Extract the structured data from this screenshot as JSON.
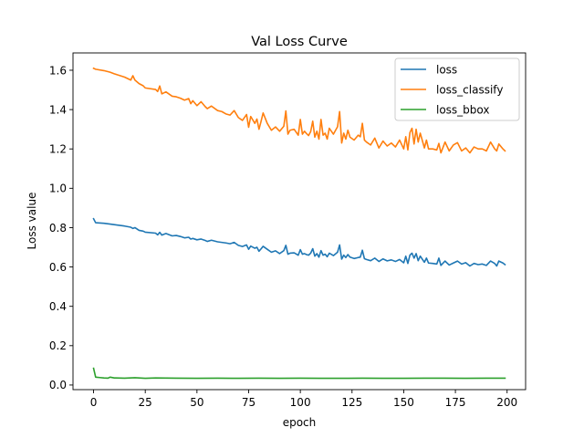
{
  "chart_data": {
    "type": "line",
    "title": "Val Loss Curve",
    "xlabel": "epoch",
    "ylabel": "Loss value",
    "xlim": [
      -9.95,
      208.95
    ],
    "ylim": [
      -0.0235,
      1.688
    ],
    "xticks": [
      0,
      25,
      50,
      75,
      100,
      125,
      150,
      175,
      200
    ],
    "yticks": [
      0.0,
      0.2,
      0.4,
      0.6,
      0.8,
      1.0,
      1.2,
      1.4,
      1.6
    ],
    "grid": false,
    "legend_position": "top-right",
    "series": [
      {
        "name": "loss",
        "color": "#1f77b4",
        "x": [
          0,
          1,
          5,
          8,
          10,
          15,
          18,
          19,
          20,
          22,
          24,
          25,
          30,
          31,
          32,
          33,
          35,
          38,
          40,
          42,
          44,
          46,
          47,
          48,
          50,
          52,
          54,
          55,
          57,
          60,
          62,
          64,
          66,
          68,
          70,
          72,
          74,
          75,
          76,
          78,
          79,
          80,
          81,
          82,
          84,
          86,
          88,
          90,
          92,
          93,
          94,
          95,
          97,
          99,
          100,
          101,
          102,
          103,
          104,
          105,
          106,
          107,
          108,
          109,
          110,
          111,
          112,
          113,
          114,
          116,
          118,
          119,
          120,
          121,
          122,
          123,
          124,
          126,
          128,
          129,
          130,
          131,
          132,
          134,
          136,
          138,
          140,
          142,
          144,
          146,
          148,
          150,
          151,
          152,
          153,
          154,
          155,
          156,
          157,
          158,
          160,
          161,
          162,
          164,
          166,
          167,
          168,
          170,
          172,
          174,
          176,
          178,
          180,
          182,
          184,
          186,
          188,
          190,
          192,
          194,
          195,
          196,
          198,
          199
        ],
        "y": [
          0.845,
          0.825,
          0.822,
          0.818,
          0.815,
          0.808,
          0.802,
          0.796,
          0.8,
          0.786,
          0.782,
          0.777,
          0.772,
          0.763,
          0.776,
          0.762,
          0.77,
          0.758,
          0.76,
          0.755,
          0.748,
          0.751,
          0.742,
          0.745,
          0.738,
          0.742,
          0.735,
          0.73,
          0.736,
          0.728,
          0.725,
          0.722,
          0.718,
          0.725,
          0.71,
          0.704,
          0.712,
          0.69,
          0.706,
          0.695,
          0.7,
          0.68,
          0.692,
          0.705,
          0.69,
          0.675,
          0.682,
          0.668,
          0.683,
          0.71,
          0.665,
          0.67,
          0.672,
          0.66,
          0.688,
          0.665,
          0.668,
          0.663,
          0.66,
          0.67,
          0.693,
          0.655,
          0.668,
          0.65,
          0.683,
          0.66,
          0.665,
          0.652,
          0.67,
          0.658,
          0.675,
          0.712,
          0.64,
          0.66,
          0.648,
          0.663,
          0.65,
          0.643,
          0.648,
          0.65,
          0.685,
          0.642,
          0.638,
          0.632,
          0.645,
          0.628,
          0.641,
          0.631,
          0.636,
          0.628,
          0.638,
          0.621,
          0.655,
          0.618,
          0.66,
          0.67,
          0.645,
          0.668,
          0.632,
          0.655,
          0.624,
          0.645,
          0.62,
          0.618,
          0.615,
          0.645,
          0.608,
          0.63,
          0.61,
          0.62,
          0.63,
          0.615,
          0.622,
          0.605,
          0.618,
          0.612,
          0.615,
          0.608,
          0.63,
          0.618,
          0.605,
          0.63,
          0.62,
          0.612
        ]
      },
      {
        "name": "loss_classify",
        "color": "#ff7f0e",
        "x": [
          0,
          1,
          5,
          8,
          10,
          15,
          18,
          19,
          20,
          22,
          24,
          25,
          30,
          31,
          32,
          33,
          35,
          38,
          40,
          42,
          44,
          46,
          47,
          48,
          50,
          52,
          54,
          55,
          57,
          60,
          62,
          64,
          66,
          68,
          70,
          72,
          74,
          75,
          76,
          78,
          79,
          80,
          81,
          82,
          84,
          86,
          88,
          90,
          92,
          93,
          94,
          95,
          97,
          99,
          100,
          101,
          102,
          103,
          104,
          105,
          106,
          107,
          108,
          109,
          110,
          111,
          112,
          113,
          114,
          116,
          118,
          119,
          120,
          121,
          122,
          123,
          124,
          126,
          128,
          129,
          130,
          131,
          132,
          134,
          136,
          138,
          140,
          142,
          144,
          146,
          148,
          150,
          151,
          152,
          153,
          154,
          155,
          156,
          157,
          158,
          160,
          161,
          162,
          164,
          166,
          167,
          168,
          170,
          172,
          174,
          176,
          178,
          180,
          182,
          184,
          186,
          188,
          190,
          192,
          194,
          195,
          196,
          198,
          199
        ],
        "y": [
          1.61,
          1.605,
          1.598,
          1.59,
          1.582,
          1.565,
          1.55,
          1.572,
          1.55,
          1.532,
          1.521,
          1.51,
          1.502,
          1.492,
          1.52,
          1.48,
          1.49,
          1.468,
          1.465,
          1.458,
          1.448,
          1.456,
          1.43,
          1.445,
          1.42,
          1.44,
          1.415,
          1.405,
          1.418,
          1.395,
          1.39,
          1.378,
          1.372,
          1.395,
          1.36,
          1.345,
          1.375,
          1.31,
          1.365,
          1.33,
          1.352,
          1.3,
          1.34,
          1.383,
          1.33,
          1.295,
          1.312,
          1.29,
          1.315,
          1.393,
          1.275,
          1.295,
          1.3,
          1.27,
          1.35,
          1.275,
          1.29,
          1.278,
          1.268,
          1.288,
          1.341,
          1.26,
          1.29,
          1.25,
          1.35,
          1.27,
          1.28,
          1.25,
          1.305,
          1.275,
          1.313,
          1.39,
          1.23,
          1.28,
          1.25,
          1.295,
          1.26,
          1.245,
          1.27,
          1.262,
          1.33,
          1.245,
          1.235,
          1.22,
          1.255,
          1.205,
          1.24,
          1.215,
          1.23,
          1.21,
          1.245,
          1.2,
          1.262,
          1.195,
          1.283,
          1.305,
          1.225,
          1.3,
          1.235,
          1.28,
          1.205,
          1.245,
          1.2,
          1.2,
          1.195,
          1.228,
          1.18,
          1.235,
          1.19,
          1.22,
          1.232,
          1.19,
          1.205,
          1.18,
          1.21,
          1.2,
          1.2,
          1.19,
          1.235,
          1.2,
          1.19,
          1.225,
          1.2,
          1.19
        ]
      },
      {
        "name": "loss_bbox",
        "color": "#2ca02c",
        "x": [
          0,
          1,
          3,
          5,
          7,
          8,
          10,
          15,
          20,
          25,
          30,
          40,
          50,
          60,
          70,
          80,
          90,
          100,
          110,
          120,
          130,
          140,
          150,
          160,
          170,
          180,
          190,
          199
        ],
        "y": [
          0.085,
          0.04,
          0.038,
          0.036,
          0.035,
          0.04,
          0.036,
          0.035,
          0.037,
          0.034,
          0.036,
          0.035,
          0.034,
          0.035,
          0.034,
          0.035,
          0.034,
          0.035,
          0.034,
          0.034,
          0.035,
          0.034,
          0.034,
          0.035,
          0.035,
          0.034,
          0.035,
          0.035
        ]
      }
    ]
  }
}
